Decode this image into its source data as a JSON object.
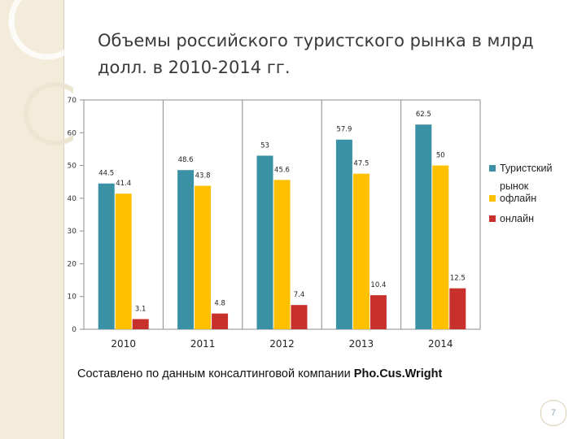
{
  "slide": {
    "title": "Объемы российского туристского рынка в млрд долл. в 2010-2014 гг.",
    "source_text": "Составлено по данным консалтинговой компании ",
    "source_brand": "Pho.Cus.Wright",
    "page_number": "7"
  },
  "chart_data": {
    "type": "bar",
    "categories": [
      "2010",
      "2011",
      "2012",
      "2013",
      "2014"
    ],
    "series": [
      {
        "name": "Туристский рынок",
        "values": [
          44.5,
          48.6,
          53,
          57.9,
          62.5
        ],
        "labels": [
          "44.5",
          "48.6",
          "53",
          "57.9",
          "62.5"
        ],
        "color": "#3a91a6"
      },
      {
        "name": "офлайн",
        "values": [
          41.4,
          43.8,
          45.6,
          47.5,
          50
        ],
        "labels": [
          "41.4",
          "43.8",
          "45.6",
          "47.5",
          "50"
        ],
        "color": "#ffc000"
      },
      {
        "name": "онлайн",
        "values": [
          3.1,
          4.8,
          7.4,
          10.4,
          12.5
        ],
        "labels": [
          "3.1",
          "4.8",
          "7.4",
          "10.4",
          "12.5"
        ],
        "color": "#c8302c"
      }
    ],
    "yticks": [
      "0",
      "10",
      "20",
      "30",
      "40",
      "50",
      "60",
      "70"
    ],
    "ylim": [
      0,
      70
    ],
    "title": "",
    "xlabel": "",
    "ylabel": "",
    "grid": "vertical",
    "legend": "right"
  }
}
